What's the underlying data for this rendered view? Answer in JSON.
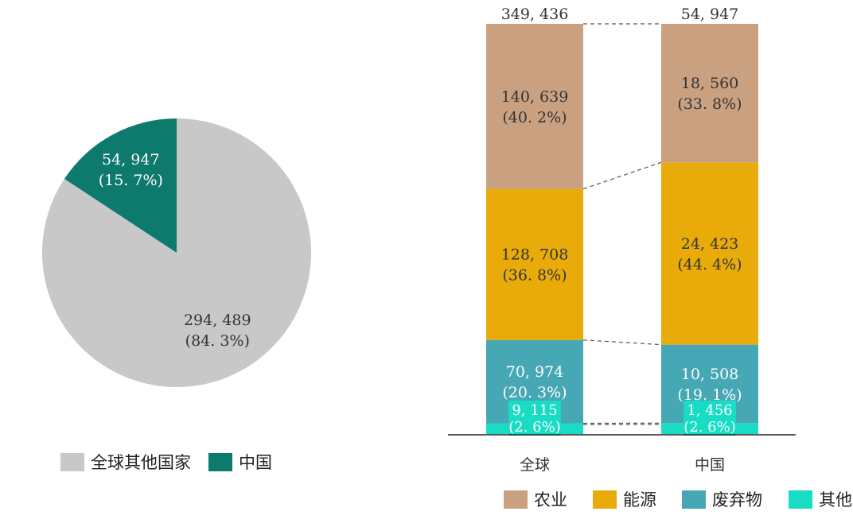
{
  "chart_data": [
    {
      "type": "pie",
      "slices": [
        {
          "name": "全球其他国家",
          "value": 294489,
          "value_label": "294, 489",
          "pct_label": "(84. 3%)",
          "color": "#c8c8c8"
        },
        {
          "name": "中国",
          "value": 54947,
          "value_label": "54, 947",
          "pct_label": "(15. 7%)",
          "color": "#0e7a6e"
        }
      ],
      "legend": {
        "placement": "bottom-left",
        "items": [
          "全球其他国家",
          "中国"
        ]
      }
    },
    {
      "type": "bar",
      "stacked": true,
      "categories": [
        "全球",
        "中国"
      ],
      "totals": [
        349436,
        54947
      ],
      "total_labels": [
        "349, 436",
        "54, 947"
      ],
      "series": [
        {
          "name": "其他",
          "color": "#18dcc4",
          "values": [
            9115,
            1456
          ],
          "labels": [
            "9, 115",
            "1, 456"
          ],
          "pct_labels": [
            "(2. 6%)",
            "(2. 6%)"
          ]
        },
        {
          "name": "废弃物",
          "color": "#45a8b4",
          "values": [
            70974,
            10508
          ],
          "labels": [
            "70, 974",
            "10, 508"
          ],
          "pct_labels": [
            "(20. 3%)",
            "(19. 1%)"
          ]
        },
        {
          "name": "能源",
          "color": "#e8ab0a",
          "values": [
            128708,
            24423
          ],
          "labels": [
            "128, 708",
            "24, 423"
          ],
          "pct_labels": [
            "(36. 8%)",
            "(44. 4%)"
          ]
        },
        {
          "name": "农业",
          "color": "#c9a080",
          "values": [
            140639,
            18560
          ],
          "labels": [
            "140, 639",
            "18, 560"
          ],
          "pct_labels": [
            "(40. 2%)",
            "(33. 8%)"
          ]
        }
      ],
      "legend": {
        "placement": "bottom-right",
        "items": [
          "农业",
          "能源",
          "废弃物",
          "其他"
        ]
      }
    }
  ]
}
